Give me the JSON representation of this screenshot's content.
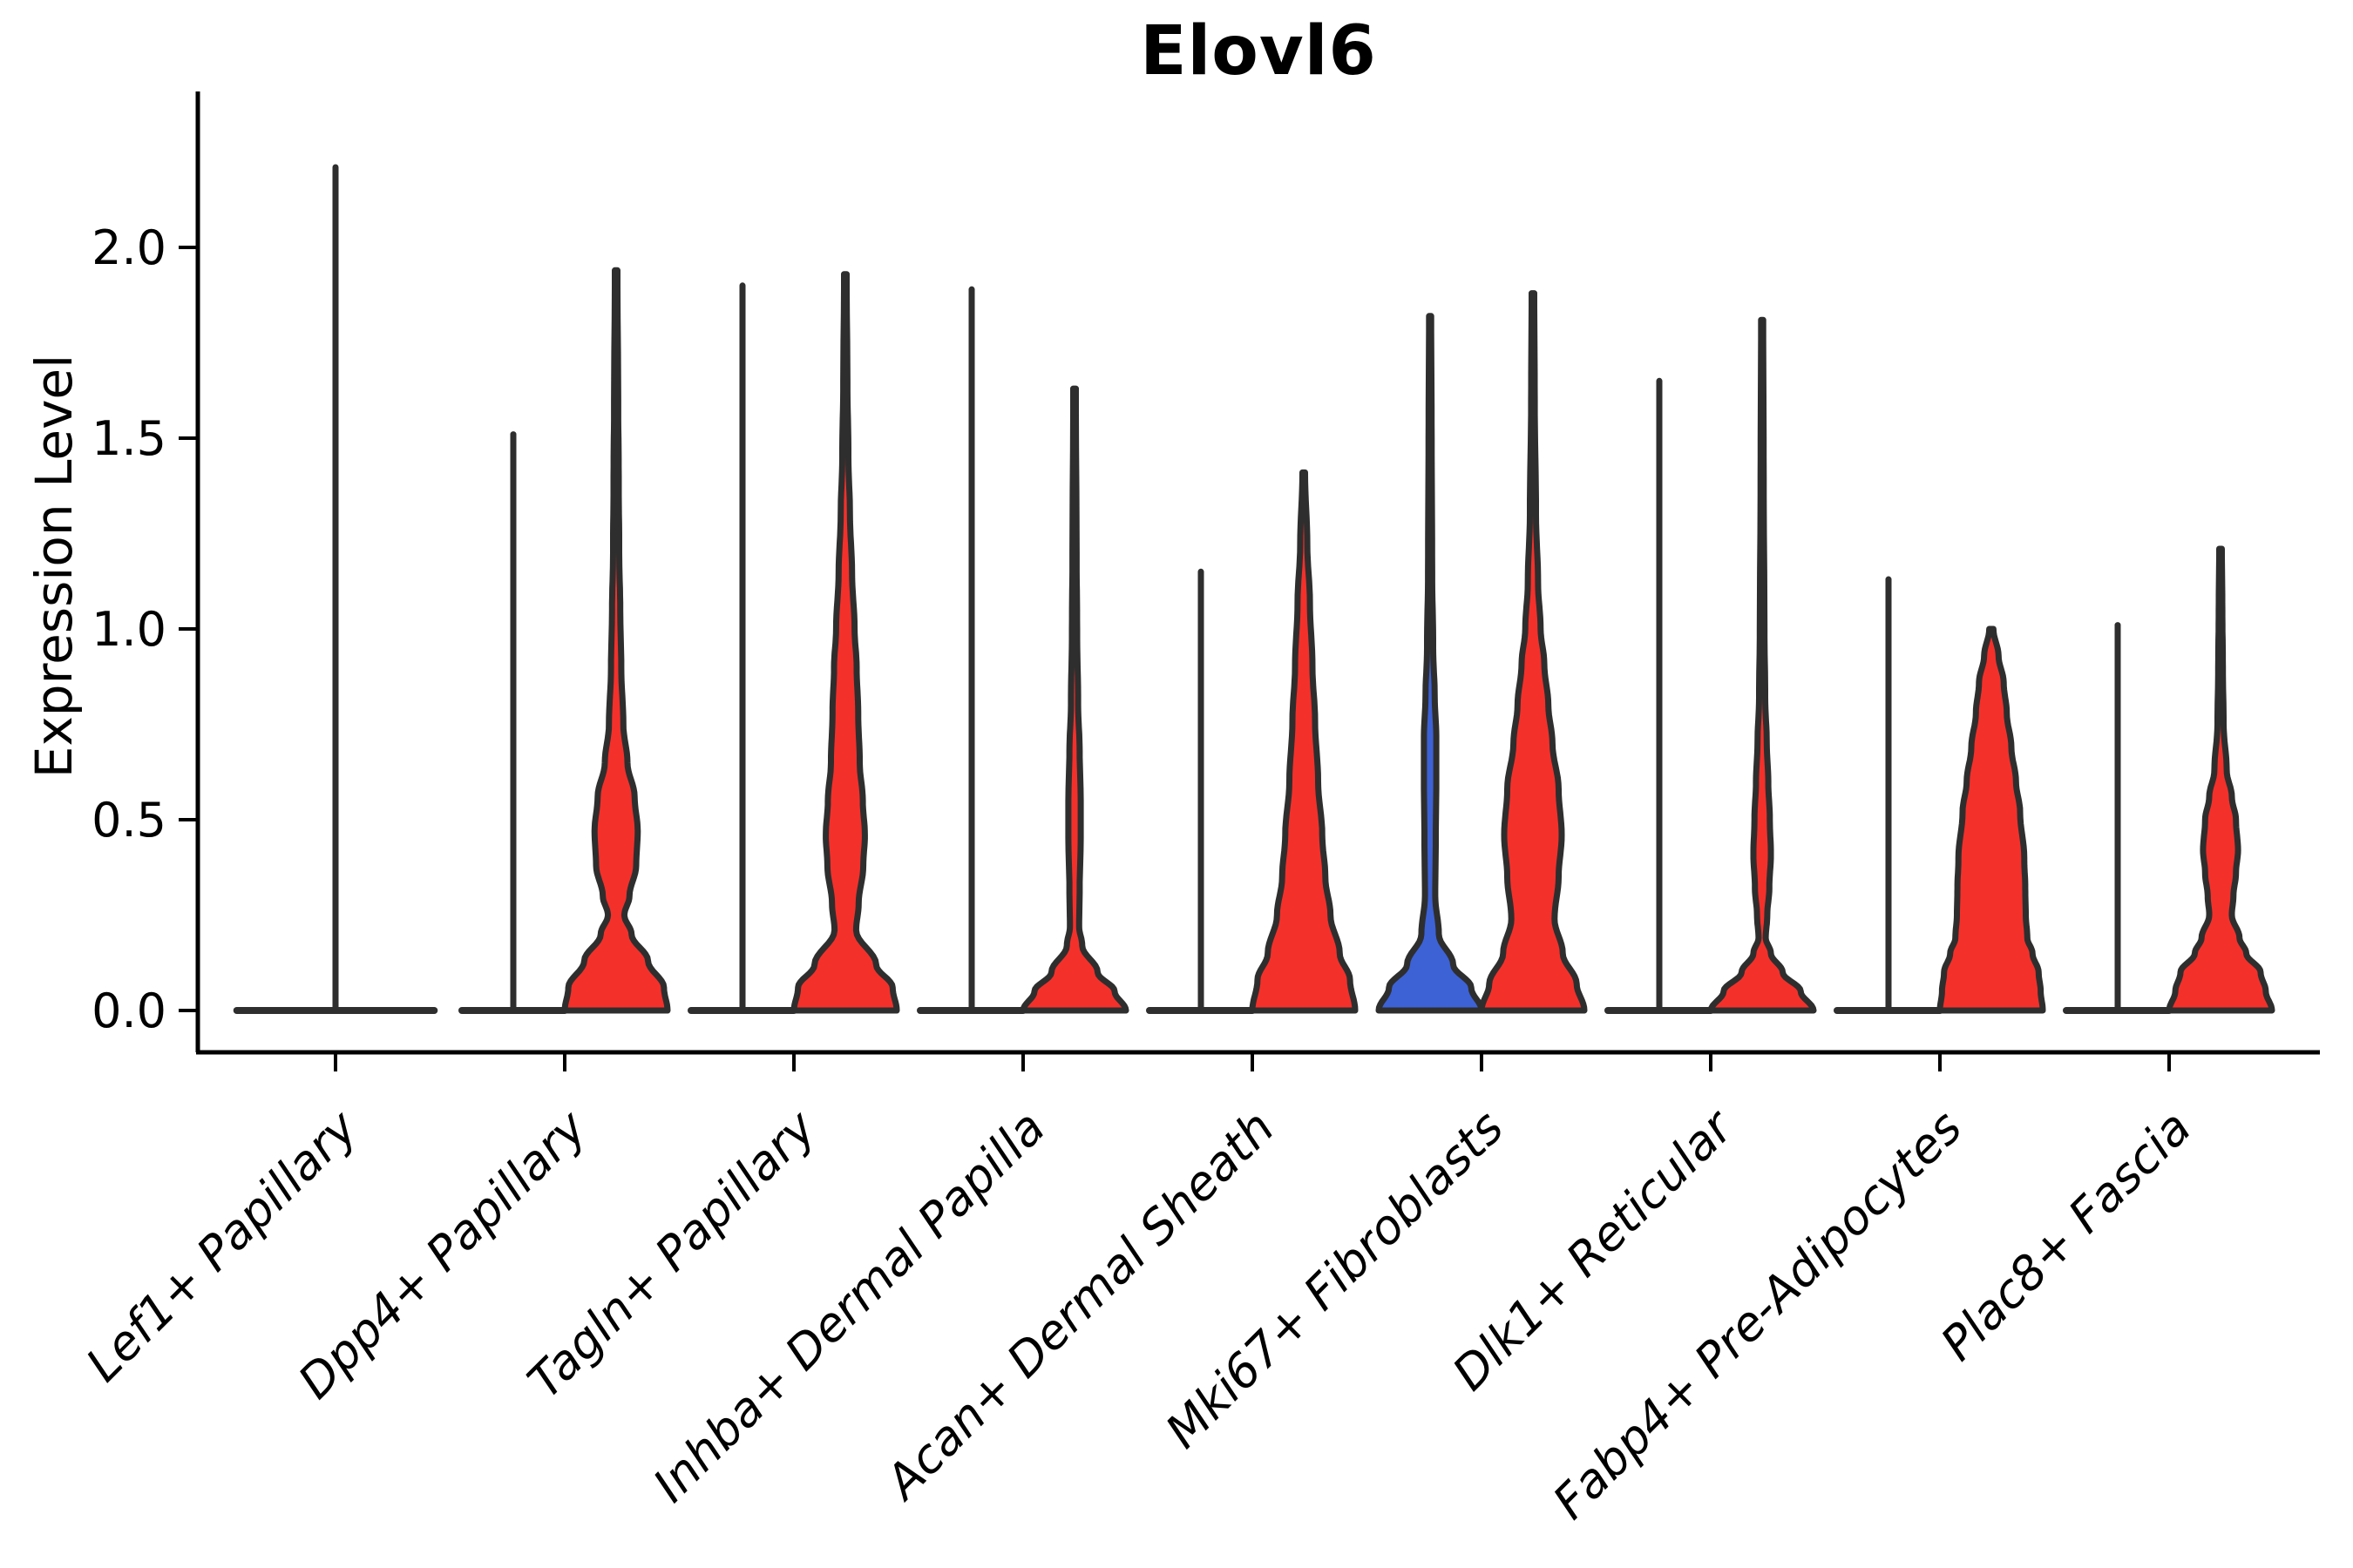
{
  "title": "Elovl6",
  "y_axis": {
    "label": "Expression Level",
    "tick_labels": [
      "0.0",
      "0.5",
      "1.0",
      "1.5",
      "2.0"
    ]
  },
  "palette": {
    "group_left_fill": "#3d62d6",
    "group_right_fill": "#f4302b",
    "violin_outline": "#2e2e2e",
    "axis_color": "#000000"
  },
  "chart_data": {
    "type": "violin",
    "title": "Elovl6",
    "xlabel": "",
    "ylabel": "Expression Level",
    "ylim": [
      -0.12,
      2.38
    ],
    "yticks": [
      0.0,
      0.5,
      1.0,
      1.5,
      2.0
    ],
    "grid": false,
    "legend": "none",
    "x_label_style": "italic, rotated 45deg, right-anchored",
    "categories": [
      "Lef1+ Papillary",
      "Dpp4+ Papillary",
      "Tagln+ Papillary",
      "Inhba+ Dermal Papilla",
      "Acan+ Dermal Sheath",
      "Mki67+ Fibroblasts",
      "Dlk1+ Reticular",
      "Fabp4+ Pre-Adipocytes",
      "Plac8+ Fascia"
    ],
    "violins": [
      {
        "category": "Lef1+ Papillary",
        "position": "center",
        "shape": "flat_zero",
        "fill": "none",
        "width_scale": 1.92,
        "max_expression": 2.21
      },
      {
        "category": "Dpp4+ Papillary",
        "position": "left",
        "shape": "flat_zero",
        "fill": "none",
        "width_scale": 1.0,
        "max_expression": 1.51
      },
      {
        "category": "Dpp4+ Papillary",
        "position": "right",
        "shape": "body",
        "fill": "#f4302b",
        "width_scale": 1.0,
        "max_expression": 1.94,
        "profile": [
          [
            0,
            1.0
          ],
          [
            0.06,
            0.93
          ],
          [
            0.13,
            0.62
          ],
          [
            0.2,
            0.3
          ],
          [
            0.25,
            0.16
          ],
          [
            0.3,
            0.26
          ],
          [
            0.38,
            0.39
          ],
          [
            0.47,
            0.42
          ],
          [
            0.56,
            0.36
          ],
          [
            0.65,
            0.22
          ],
          [
            0.75,
            0.14
          ],
          [
            0.9,
            0.1
          ],
          [
            1.05,
            0.08
          ],
          [
            1.2,
            0.06
          ],
          [
            1.4,
            0.05
          ],
          [
            1.6,
            0.04
          ],
          [
            1.94,
            0.025
          ]
        ]
      },
      {
        "category": "Tagln+ Papillary",
        "position": "left",
        "shape": "flat_zero",
        "fill": "none",
        "width_scale": 1.0,
        "max_expression": 1.9
      },
      {
        "category": "Tagln+ Papillary",
        "position": "right",
        "shape": "body",
        "fill": "#f4302b",
        "width_scale": 1.0,
        "max_expression": 1.93,
        "profile": [
          [
            0,
            1.0
          ],
          [
            0.06,
            0.92
          ],
          [
            0.12,
            0.6
          ],
          [
            0.21,
            0.21
          ],
          [
            0.28,
            0.26
          ],
          [
            0.38,
            0.35
          ],
          [
            0.46,
            0.38
          ],
          [
            0.55,
            0.34
          ],
          [
            0.65,
            0.28
          ],
          [
            0.78,
            0.25
          ],
          [
            0.9,
            0.22
          ],
          [
            1.0,
            0.18
          ],
          [
            1.15,
            0.13
          ],
          [
            1.3,
            0.09
          ],
          [
            1.45,
            0.06
          ],
          [
            1.65,
            0.04
          ],
          [
            1.93,
            0.025
          ]
        ]
      },
      {
        "category": "Inhba+ Dermal Papilla",
        "position": "left",
        "shape": "flat_zero",
        "fill": "none",
        "width_scale": 1.0,
        "max_expression": 1.89
      },
      {
        "category": "Inhba+ Dermal Papilla",
        "position": "right",
        "shape": "body",
        "fill": "#f4302b",
        "width_scale": 1.0,
        "max_expression": 1.63,
        "profile": [
          [
            0,
            1.0
          ],
          [
            0.05,
            0.78
          ],
          [
            0.1,
            0.45
          ],
          [
            0.17,
            0.15
          ],
          [
            0.22,
            0.09
          ],
          [
            0.32,
            0.1
          ],
          [
            0.45,
            0.12
          ],
          [
            0.55,
            0.12
          ],
          [
            0.68,
            0.1
          ],
          [
            0.8,
            0.07
          ],
          [
            1.0,
            0.05
          ],
          [
            1.2,
            0.04
          ],
          [
            1.63,
            0.025
          ]
        ]
      },
      {
        "category": "Acan+ Dermal Sheath",
        "position": "left",
        "shape": "flat_zero",
        "fill": "none",
        "width_scale": 1.0,
        "max_expression": 1.15
      },
      {
        "category": "Acan+ Dermal Sheath",
        "position": "right",
        "shape": "body",
        "fill": "#f4302b",
        "width_scale": 1.0,
        "max_expression": 1.41,
        "profile": [
          [
            0,
            1.0
          ],
          [
            0.08,
            0.9
          ],
          [
            0.15,
            0.7
          ],
          [
            0.25,
            0.52
          ],
          [
            0.35,
            0.42
          ],
          [
            0.46,
            0.36
          ],
          [
            0.6,
            0.28
          ],
          [
            0.76,
            0.22
          ],
          [
            0.9,
            0.17
          ],
          [
            1.07,
            0.12
          ],
          [
            1.22,
            0.07
          ],
          [
            1.41,
            0.025
          ]
        ]
      },
      {
        "category": "Mki67+ Fibroblasts",
        "position": "left",
        "shape": "body",
        "fill": "#3d62d6",
        "width_scale": 1.0,
        "max_expression": 1.82,
        "profile": [
          [
            0,
            1.0
          ],
          [
            0.06,
            0.8
          ],
          [
            0.12,
            0.45
          ],
          [
            0.2,
            0.17
          ],
          [
            0.3,
            0.1
          ],
          [
            0.45,
            0.11
          ],
          [
            0.6,
            0.12
          ],
          [
            0.72,
            0.12
          ],
          [
            0.82,
            0.09
          ],
          [
            0.95,
            0.06
          ],
          [
            1.15,
            0.04
          ],
          [
            1.5,
            0.03
          ],
          [
            1.82,
            0.02
          ]
        ]
      },
      {
        "category": "Mki67+ Fibroblasts",
        "position": "right",
        "shape": "body",
        "fill": "#f4302b",
        "width_scale": 1.0,
        "max_expression": 1.88,
        "profile": [
          [
            0,
            1.0
          ],
          [
            0.07,
            0.85
          ],
          [
            0.15,
            0.58
          ],
          [
            0.24,
            0.42
          ],
          [
            0.35,
            0.5
          ],
          [
            0.46,
            0.56
          ],
          [
            0.58,
            0.5
          ],
          [
            0.7,
            0.38
          ],
          [
            0.8,
            0.3
          ],
          [
            0.91,
            0.22
          ],
          [
            1.0,
            0.15
          ],
          [
            1.12,
            0.1
          ],
          [
            1.3,
            0.06
          ],
          [
            1.6,
            0.035
          ],
          [
            1.88,
            0.025
          ]
        ]
      },
      {
        "category": "Dlk1+ Reticular",
        "position": "left",
        "shape": "flat_zero",
        "fill": "none",
        "width_scale": 1.0,
        "max_expression": 1.65
      },
      {
        "category": "Dlk1+ Reticular",
        "position": "right",
        "shape": "body",
        "fill": "#f4302b",
        "width_scale": 1.0,
        "max_expression": 1.81,
        "profile": [
          [
            0,
            1.0
          ],
          [
            0.05,
            0.75
          ],
          [
            0.1,
            0.4
          ],
          [
            0.15,
            0.17
          ],
          [
            0.19,
            0.07
          ],
          [
            0.25,
            0.1
          ],
          [
            0.32,
            0.14
          ],
          [
            0.41,
            0.17
          ],
          [
            0.5,
            0.15
          ],
          [
            0.6,
            0.12
          ],
          [
            0.7,
            0.09
          ],
          [
            0.82,
            0.06
          ],
          [
            1.0,
            0.045
          ],
          [
            1.4,
            0.03
          ],
          [
            1.81,
            0.02
          ]
        ]
      },
      {
        "category": "Fabp4+ Pre-Adipocytes",
        "position": "left",
        "shape": "flat_zero",
        "fill": "none",
        "width_scale": 1.0,
        "max_expression": 1.13
      },
      {
        "category": "Fabp4+ Pre-Adipocytes",
        "position": "right",
        "shape": "body",
        "fill": "#f4302b",
        "width_scale": 1.0,
        "max_expression": 1.0,
        "profile": [
          [
            0,
            1.0
          ],
          [
            0.05,
            0.96
          ],
          [
            0.1,
            0.92
          ],
          [
            0.15,
            0.8
          ],
          [
            0.19,
            0.7
          ],
          [
            0.25,
            0.67
          ],
          [
            0.32,
            0.66
          ],
          [
            0.4,
            0.64
          ],
          [
            0.52,
            0.56
          ],
          [
            0.6,
            0.48
          ],
          [
            0.69,
            0.39
          ],
          [
            0.78,
            0.3
          ],
          [
            0.86,
            0.24
          ],
          [
            0.93,
            0.14
          ],
          [
            1.0,
            0.04
          ]
        ]
      },
      {
        "category": "Plac8+ Fascia",
        "position": "left",
        "shape": "flat_zero",
        "fill": "none",
        "width_scale": 1.0,
        "max_expression": 1.01
      },
      {
        "category": "Plac8+ Fascia",
        "position": "right",
        "shape": "body",
        "fill": "#f4302b",
        "width_scale": 1.0,
        "max_expression": 1.21,
        "profile": [
          [
            0,
            1.0
          ],
          [
            0.05,
            0.88
          ],
          [
            0.1,
            0.78
          ],
          [
            0.15,
            0.5
          ],
          [
            0.19,
            0.37
          ],
          [
            0.25,
            0.22
          ],
          [
            0.3,
            0.25
          ],
          [
            0.36,
            0.3
          ],
          [
            0.42,
            0.34
          ],
          [
            0.5,
            0.3
          ],
          [
            0.56,
            0.22
          ],
          [
            0.63,
            0.12
          ],
          [
            0.75,
            0.06
          ],
          [
            0.9,
            0.045
          ],
          [
            1.05,
            0.035
          ],
          [
            1.21,
            0.025
          ]
        ]
      }
    ]
  }
}
